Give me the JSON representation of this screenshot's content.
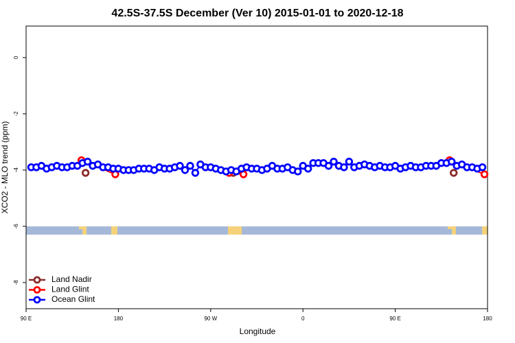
{
  "chart_data": {
    "type": "line",
    "title": "42.5S-37.5S December (Ver 10)   2015-01-01 to 2020-12-18",
    "x_label": "Longitude",
    "y_label": "XCO2 - MLO trend (ppm)",
    "xlim": [
      90,
      540
    ],
    "ylim": [
      -8.93,
      1.12
    ],
    "xticks": [
      {
        "value": 90,
        "label": "90 E"
      },
      180,
      {
        "value": 270,
        "label": "90 W"
      },
      {
        "value": 360,
        "label": "0"
      },
      {
        "value": 450,
        "label": "90 E"
      },
      {
        "value": 540,
        "label": "180"
      }
    ],
    "yticks": [
      0,
      -2,
      -4,
      -6,
      -8
    ],
    "legend": "bottom-left",
    "series": [
      {
        "name": "Land Nadir",
        "color": "#8b2a2a",
        "connect": false,
        "x": [
          148,
          292,
          507
        ],
        "values": [
          -4.1,
          -4.1,
          -4.1
        ]
      },
      {
        "name": "Land Glint",
        "color": "#ff0000",
        "connect": false,
        "x": [
          144,
          177,
          288,
          302,
          503,
          537
        ],
        "values": [
          -3.65,
          -4.15,
          -4.1,
          -4.15,
          -3.65,
          -4.15
        ]
      },
      {
        "name": "Ocean Glint",
        "color": "#0000ff",
        "connect": true,
        "x": [
          95,
          100,
          105,
          110,
          115,
          120,
          125,
          130,
          135,
          140,
          145,
          150,
          155,
          160,
          165,
          170,
          175,
          180,
          185,
          190,
          195,
          200,
          205,
          210,
          215,
          220,
          225,
          230,
          235,
          240,
          245,
          250,
          255,
          260,
          265,
          270,
          275,
          280,
          285,
          290,
          295,
          300,
          305,
          310,
          315,
          320,
          325,
          330,
          335,
          340,
          345,
          350,
          355,
          360,
          365,
          370,
          375,
          380,
          385,
          390,
          395,
          400,
          405,
          410,
          415,
          420,
          425,
          430,
          435,
          440,
          445,
          450,
          455,
          460,
          465,
          470,
          475,
          480,
          485,
          490,
          495,
          500,
          505,
          510,
          515,
          520,
          525,
          530,
          535
        ],
        "values": [
          -3.9,
          -3.9,
          -3.85,
          -3.95,
          -3.9,
          -3.85,
          -3.9,
          -3.9,
          -3.85,
          -3.85,
          -3.75,
          -3.7,
          -3.85,
          -3.8,
          -3.9,
          -3.9,
          -3.95,
          -3.95,
          -4.0,
          -4.0,
          -4.0,
          -3.95,
          -3.95,
          -3.95,
          -4.0,
          -3.9,
          -3.95,
          -3.95,
          -3.9,
          -3.85,
          -4.0,
          -3.85,
          -4.1,
          -3.8,
          -3.9,
          -3.9,
          -3.95,
          -4.0,
          -4.05,
          -4.0,
          -4.05,
          -3.95,
          -3.9,
          -3.95,
          -3.95,
          -4.0,
          -3.95,
          -3.85,
          -3.95,
          -3.95,
          -3.9,
          -4.0,
          -4.05,
          -3.85,
          -3.95,
          -3.75,
          -3.75,
          -3.75,
          -3.85,
          -3.7,
          -3.85,
          -3.9,
          -3.7,
          -3.9,
          -3.85,
          -3.8,
          -3.85,
          -3.9,
          -3.85,
          -3.9,
          -3.9,
          -3.85,
          -3.95,
          -3.9,
          -3.85,
          -3.9,
          -3.9,
          -3.85,
          -3.85,
          -3.85,
          -3.75,
          -3.75,
          -3.7,
          -3.85,
          -3.8,
          -3.9,
          -3.9,
          -3.95,
          -3.9
        ]
      }
    ]
  }
}
